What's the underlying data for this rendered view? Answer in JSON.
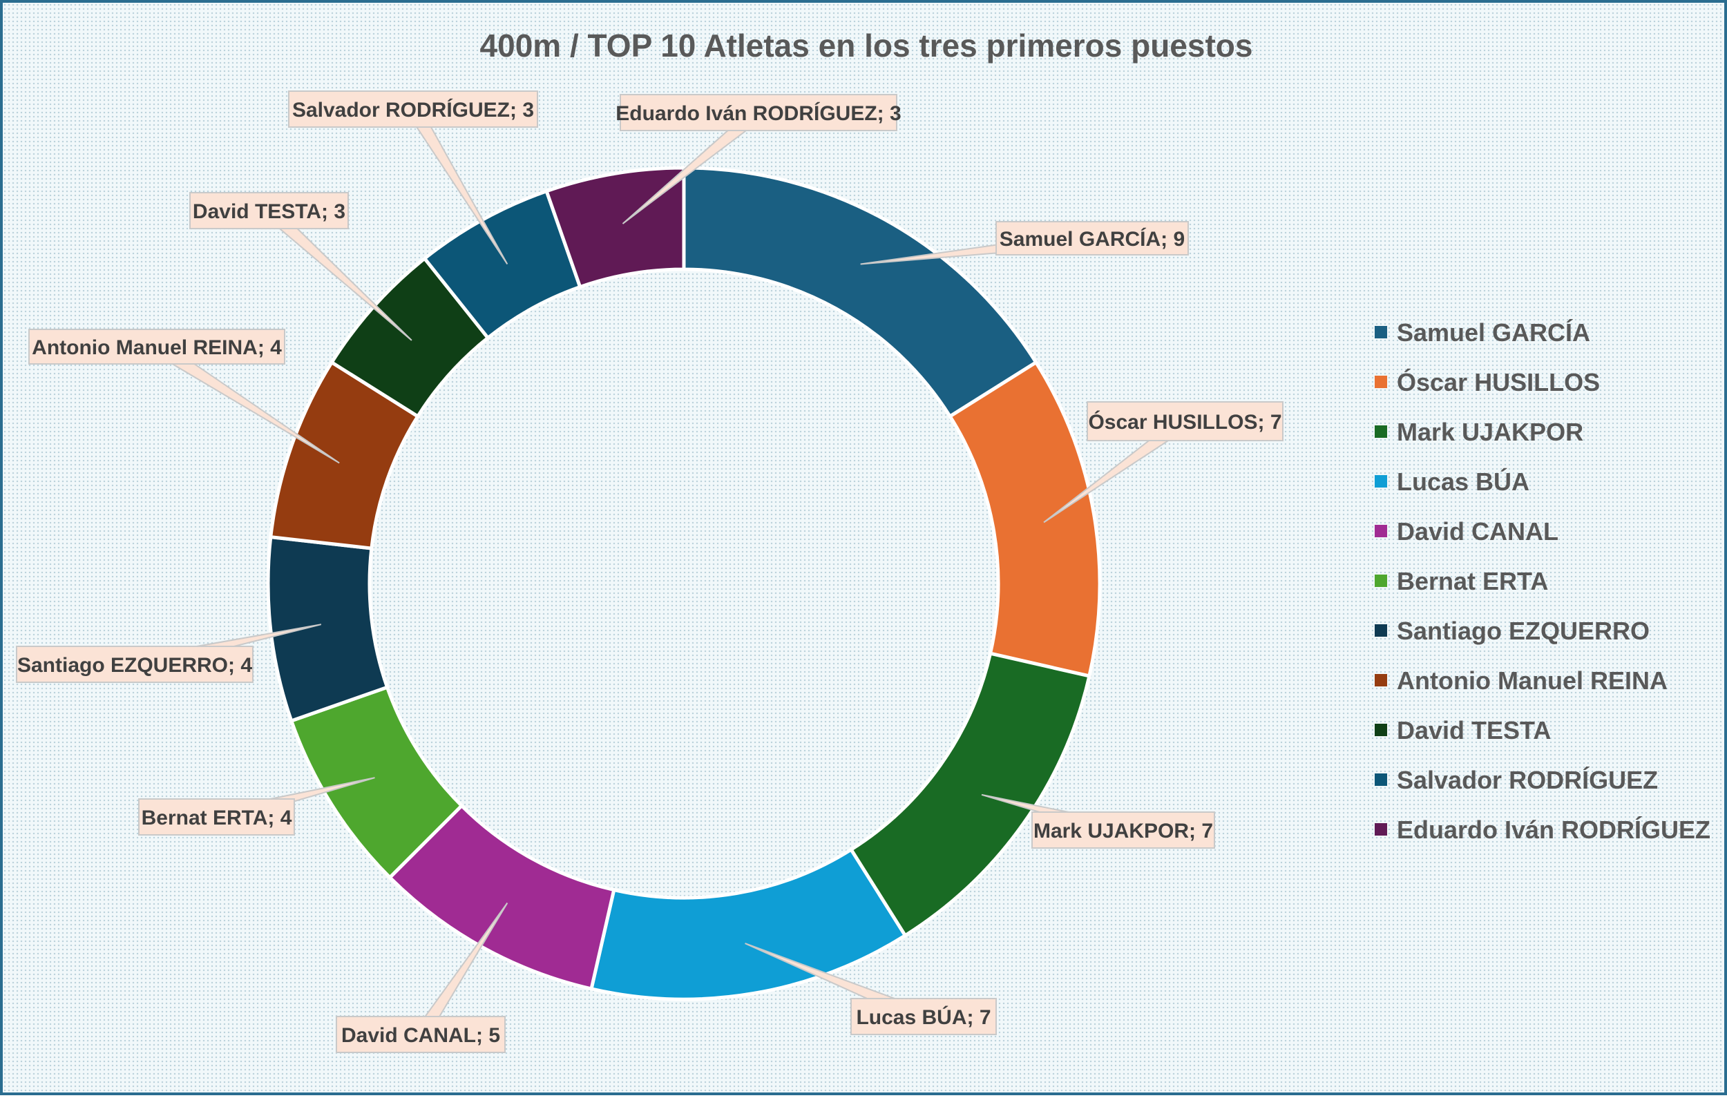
{
  "chart_data": {
    "type": "pie",
    "variant": "doughnut",
    "title": "400m / TOP 10 Atletas en los tres primeros puestos",
    "categories": [
      "Samuel GARCÍA",
      "Óscar HUSILLOS",
      "Mark UJAKPOR",
      "Lucas BÚA",
      "David CANAL",
      "Bernat ERTA",
      "Santiago EZQUERRO",
      "Antonio Manuel REINA",
      "David TESTA",
      "Salvador RODRÍGUEZ",
      "Eduardo Iván RODRÍGUEZ"
    ],
    "values": [
      9,
      7,
      7,
      7,
      5,
      4,
      4,
      4,
      3,
      3,
      3
    ],
    "data_labels": [
      "Samuel GARCÍA; 9",
      "Óscar HUSILLOS; 7",
      "Mark UJAKPOR; 7",
      "Lucas BÚA; 7",
      "David CANAL; 5",
      "Bernat ERTA; 4",
      "Santiago EZQUERRO; 4",
      "Antonio Manuel REINA; 4",
      "David TESTA; 3",
      "Salvador RODRÍGUEZ; 3",
      "Eduardo Iván RODRÍGUEZ; 3"
    ],
    "colors": [
      "#1a5f82",
      "#e97132",
      "#196b24",
      "#0f9ed5",
      "#a02b93",
      "#4ea72e",
      "#0e3a52",
      "#953c10",
      "#0f3f16",
      "#0c5677",
      "#601a55"
    ],
    "legend_position": "right"
  }
}
